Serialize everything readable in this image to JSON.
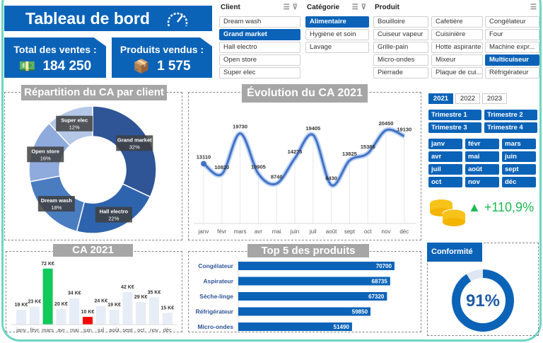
{
  "header": {
    "title": "Tableau de bord",
    "icon": "speedometer-icon"
  },
  "kpis": [
    {
      "label": "Total des ventes :",
      "value": "184 250",
      "icon": "money-icon"
    },
    {
      "label": "Produits vendus :",
      "value": "1 575",
      "icon": "boxes-icon"
    }
  ],
  "slicers": {
    "client": {
      "title": "Client",
      "items": [
        {
          "label": "Dream wash",
          "selected": false
        },
        {
          "label": "Grand market",
          "selected": true
        },
        {
          "label": "Hall electro",
          "selected": false
        },
        {
          "label": "Open store",
          "selected": false
        },
        {
          "label": "Super elec",
          "selected": false
        }
      ]
    },
    "categorie": {
      "title": "Catégorie",
      "items": [
        {
          "label": "Alimentaire",
          "selected": true
        },
        {
          "label": "Hygiène et soin",
          "selected": false
        },
        {
          "label": "Lavage",
          "selected": false
        }
      ]
    },
    "produit": {
      "title": "Produit",
      "items": [
        {
          "label": "Bouilloire",
          "selected": false
        },
        {
          "label": "Cafetière",
          "selected": false
        },
        {
          "label": "Congélateur",
          "selected": false
        },
        {
          "label": "Cuiseur vapeur",
          "selected": false
        },
        {
          "label": "Cuisinière",
          "selected": false
        },
        {
          "label": "Four",
          "selected": false
        },
        {
          "label": "Grille-pain",
          "selected": false
        },
        {
          "label": "Hotte aspirante",
          "selected": false
        },
        {
          "label": "Machine expr...",
          "selected": false
        },
        {
          "label": "Micro-ondes",
          "selected": false
        },
        {
          "label": "Mixeur",
          "selected": false
        },
        {
          "label": "Multicuiseur",
          "selected": true
        },
        {
          "label": "Pierrade",
          "selected": false
        },
        {
          "label": "Plaque de cui...",
          "selected": false
        },
        {
          "label": "Réfrigérateur",
          "selected": false
        }
      ]
    }
  },
  "years": [
    {
      "label": "2021",
      "selected": true
    },
    {
      "label": "2022",
      "selected": false
    },
    {
      "label": "2023",
      "selected": false
    }
  ],
  "trimestres": [
    "Trimestre 1",
    "Trimestre 2",
    "Trimestre 3",
    "Trimestre 4"
  ],
  "months": [
    "janv",
    "févr",
    "mars",
    "avr",
    "mai",
    "juin",
    "juil",
    "août",
    "sept",
    "oct",
    "nov",
    "déc"
  ],
  "growth": {
    "value": "+110,9%",
    "direction": "up",
    "color": "#1db954"
  },
  "conformite": {
    "title": "Conformité",
    "value": "91%",
    "fraction": 0.91
  },
  "chart_data": [
    {
      "type": "pie",
      "title": "Répartition du CA par client",
      "donut": true,
      "slices": [
        {
          "label": "Grand market",
          "value": "32%",
          "pct": 32,
          "color": "#2f5597"
        },
        {
          "label": "Hall electro",
          "value": "22%",
          "pct": 22,
          "color": "#2e64ad"
        },
        {
          "label": "Dream wash",
          "value": "18%",
          "pct": 18,
          "color": "#4a7cc0"
        },
        {
          "label": "Open store",
          "value": "16%",
          "pct": 16,
          "color": "#8faadc"
        },
        {
          "label": "Super elec",
          "value": "12%",
          "pct": 12,
          "color": "#b4c7e7"
        }
      ]
    },
    {
      "type": "line",
      "title": "Évolution du CA 2021",
      "categories": [
        "janv",
        "févr",
        "mars",
        "avr",
        "mai",
        "juin",
        "juil",
        "août",
        "sept",
        "oct",
        "nov",
        "déc"
      ],
      "values": [
        13110,
        10820,
        19730,
        10905,
        8740,
        14275,
        19405,
        8430,
        13825,
        15385,
        20450,
        19130
      ],
      "grid": "vertical",
      "color": "#4472c4"
    },
    {
      "type": "bar",
      "title": "CA 2021",
      "categories": [
        "janv",
        "févr",
        "mars",
        "avr",
        "mai",
        "juin",
        "juil",
        "août",
        "sept",
        "oct",
        "nov",
        "déc"
      ],
      "values": [
        19,
        23,
        72,
        20,
        34,
        10,
        24,
        19,
        42,
        29,
        35,
        15
      ],
      "labels": [
        "19 K€",
        "23 K€",
        "72 K€",
        "20 K€",
        "34 K€",
        "10 K€",
        "24 K€",
        "19 K€",
        "42 K€",
        "29 K€",
        "35 K€",
        "15 K€"
      ],
      "unit": "K€",
      "max_color": "#10c95a",
      "min_color": "#ff0000",
      "color": "#e6edf7"
    },
    {
      "type": "bar",
      "orientation": "horizontal",
      "title": "Top 5 des produits",
      "categories": [
        "Congélateur",
        "Aspirateur",
        "Sèche-linge",
        "Réfrigérateur",
        "Micro-ondes"
      ],
      "values": [
        70700,
        68735,
        67320,
        59850,
        51490
      ],
      "color": "#0b63b8"
    }
  ]
}
